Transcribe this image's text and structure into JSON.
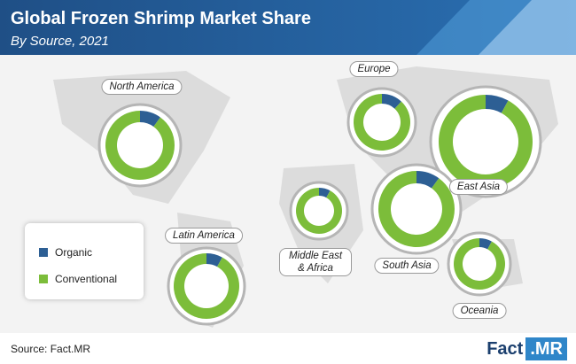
{
  "chart_data": {
    "type": "donut",
    "title": "Global Frozen Shrimp Market Share",
    "subtitle": "By Source, 2021",
    "categories": [
      "North America",
      "Europe",
      "East Asia",
      "South Asia",
      "Middle East & Africa",
      "Latin America",
      "Oceania"
    ],
    "series": [
      {
        "name": "Organic",
        "color": "#2d5f94",
        "values": [
          10,
          12,
          8,
          10,
          8,
          8,
          8
        ]
      },
      {
        "name": "Conventional",
        "color": "#7cbd3a",
        "values": [
          90,
          88,
          92,
          90,
          92,
          92,
          92
        ]
      }
    ],
    "source": "Source: Fact.MR",
    "logo": [
      "Fact",
      ".MR"
    ]
  }
}
